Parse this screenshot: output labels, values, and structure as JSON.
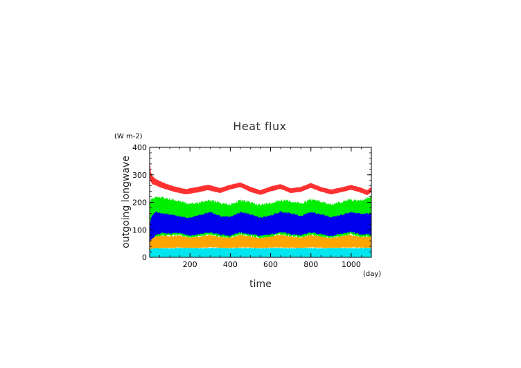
{
  "chart_data": {
    "type": "area",
    "title": "Heat flux",
    "xlabel": "time",
    "ylabel": "outgoing longwave",
    "x_unit": "(day)",
    "y_unit": "(W m-2)",
    "xlim": [
      0,
      1100
    ],
    "ylim": [
      0,
      400
    ],
    "x_ticks": [
      200,
      400,
      600,
      800,
      1000
    ],
    "y_ticks": [
      0,
      100,
      200,
      300,
      400
    ],
    "x_minor_step": 50,
    "y_minor_step": 20,
    "grid": false,
    "legend": "none",
    "series": [
      {
        "color": "#ff3030",
        "x": [
          0,
          5,
          15,
          30,
          50,
          80,
          120,
          180,
          230,
          290,
          350,
          400,
          450,
          500,
          550,
          600,
          650,
          700,
          750,
          800,
          850,
          900,
          950,
          1000,
          1050,
          1080,
          1100
        ],
        "low": [
          300,
          275,
          265,
          262,
          255,
          248,
          238,
          229,
          235,
          244,
          234,
          247,
          256,
          238,
          227,
          240,
          249,
          234,
          238,
          253,
          239,
          229,
          237,
          246,
          235,
          226,
          238
        ],
        "high": [
          350,
          310,
          295,
          285,
          278,
          268,
          258,
          248,
          255,
          264,
          252,
          264,
          272,
          256,
          244,
          258,
          266,
          251,
          256,
          270,
          256,
          246,
          254,
          263,
          253,
          244,
          255
        ]
      },
      {
        "color": "#00ee00",
        "x": [
          0,
          10,
          30,
          60,
          100,
          150,
          200,
          250,
          300,
          350,
          400,
          450,
          500,
          550,
          600,
          650,
          700,
          750,
          800,
          850,
          900,
          950,
          1000,
          1050,
          1100
        ],
        "low": [
          30,
          55,
          70,
          72,
          75,
          78,
          66,
          74,
          80,
          70,
          68,
          80,
          74,
          66,
          72,
          80,
          72,
          70,
          78,
          72,
          66,
          74,
          80,
          70,
          72
        ],
        "high": [
          200,
          215,
          228,
          222,
          214,
          208,
          196,
          205,
          212,
          200,
          196,
          210,
          204,
          194,
          202,
          212,
          208,
          200,
          214,
          206,
          196,
          204,
          214,
          210,
          225
        ]
      },
      {
        "color": "#0000ee",
        "x": [
          0,
          10,
          30,
          60,
          100,
          150,
          200,
          250,
          300,
          350,
          400,
          450,
          500,
          550,
          600,
          650,
          700,
          750,
          800,
          850,
          900,
          950,
          1000,
          1050,
          1100
        ],
        "low": [
          40,
          60,
          78,
          86,
          84,
          88,
          76,
          82,
          90,
          80,
          76,
          88,
          82,
          76,
          82,
          90,
          82,
          78,
          88,
          82,
          76,
          84,
          90,
          80,
          82
        ],
        "high": [
          120,
          148,
          168,
          162,
          158,
          150,
          144,
          156,
          166,
          152,
          148,
          166,
          158,
          146,
          154,
          168,
          162,
          152,
          166,
          160,
          148,
          156,
          166,
          160,
          162
        ]
      },
      {
        "color": "#ffa500",
        "x": [
          0,
          10,
          30,
          60,
          100,
          150,
          200,
          250,
          300,
          350,
          400,
          450,
          500,
          550,
          600,
          650,
          700,
          750,
          800,
          850,
          900,
          950,
          1000,
          1050,
          1100
        ],
        "low": [
          20,
          30,
          32,
          32,
          33,
          34,
          33,
          34,
          35,
          34,
          33,
          35,
          34,
          33,
          34,
          35,
          34,
          33,
          35,
          34,
          33,
          34,
          35,
          34,
          33
        ],
        "high": [
          55,
          68,
          76,
          80,
          78,
          80,
          72,
          76,
          82,
          74,
          72,
          82,
          76,
          70,
          76,
          82,
          76,
          72,
          82,
          76,
          70,
          78,
          82,
          74,
          76
        ]
      },
      {
        "color": "#00e5ee",
        "x": [
          0,
          10,
          30,
          60,
          100,
          150,
          200,
          250,
          300,
          350,
          400,
          450,
          500,
          550,
          600,
          650,
          700,
          750,
          800,
          850,
          900,
          950,
          1000,
          1050,
          1100
        ],
        "low": [
          0,
          0,
          0,
          0,
          0,
          0,
          0,
          0,
          0,
          0,
          0,
          0,
          0,
          0,
          0,
          0,
          0,
          0,
          0,
          0,
          0,
          0,
          0,
          0,
          0
        ],
        "high": [
          30,
          32,
          34,
          33,
          33,
          34,
          34,
          33,
          34,
          34,
          33,
          34,
          34,
          33,
          34,
          34,
          33,
          34,
          34,
          33,
          34,
          34,
          33,
          34,
          34
        ]
      }
    ]
  },
  "colors": {
    "axis": "#000000",
    "background": "#ffffff"
  }
}
